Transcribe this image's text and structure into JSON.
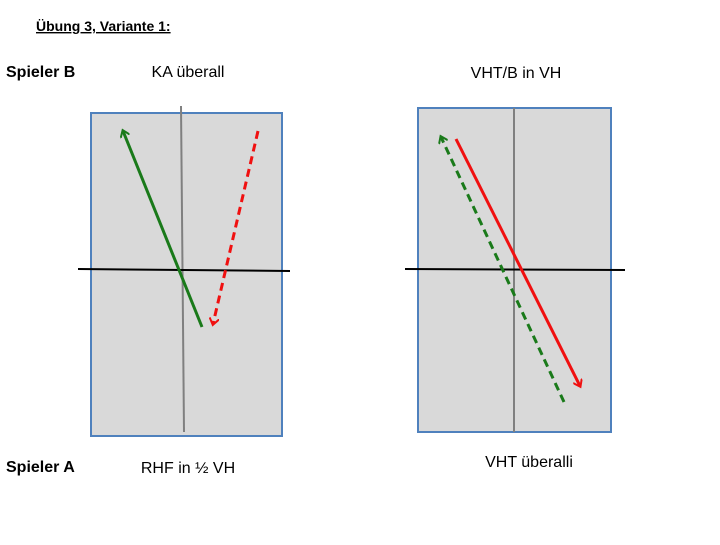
{
  "header": {
    "title": "Übung 3, Variante 1:"
  },
  "labels": {
    "player_b": "Spieler B",
    "player_a": "Spieler A"
  },
  "diagrams": [
    {
      "top_label": "KA überall",
      "bottom_label": "RHF in ½ VH"
    },
    {
      "top_label": "VHT/B in VH",
      "bottom_label": "VHT überalli"
    }
  ]
}
